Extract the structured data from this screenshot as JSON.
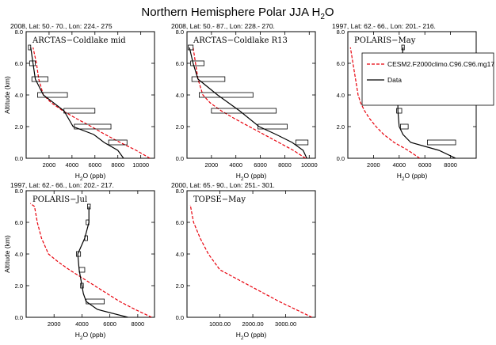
{
  "figure": {
    "title_main": "Northern Hemisphere Polar JJA H",
    "title_sub": "2",
    "title_tail": "O"
  },
  "colors": {
    "model": "#e8000b",
    "data": "#000000",
    "frame": "#000000"
  },
  "legend": {
    "model_label": "CESM2.F2000climo.C96.C96.mg17",
    "data_label": "Data"
  },
  "chart_data": [
    {
      "type": "line",
      "header": "2008, Lat:  50.- 70., Lon: 224.- 275",
      "label": "ARCTAS−Coldlake mid",
      "xlabel_main": "H",
      "xlabel_sub": "2",
      "xlabel_tail": "O (ppb)",
      "ylabel": "Altitude (km)",
      "xlim": [
        0,
        11200
      ],
      "ylim": [
        0,
        8
      ],
      "xticks": [
        2000,
        4000,
        6000,
        8000,
        10000
      ],
      "xtick_labels": [
        "2000",
        "4000",
        "6000",
        "8000",
        "10000"
      ],
      "yticks": [
        0,
        2,
        4,
        6,
        8
      ],
      "ytick_labels": [
        "0.0",
        "2.0",
        "4.0",
        "6.0",
        "8.0"
      ],
      "show_ylabel": true,
      "series": [
        {
          "role": "model",
          "x": [
            10800,
            9600,
            8200,
            6900,
            5700,
            4400,
            3200,
            2200,
            1500,
            1100,
            900,
            600
          ],
          "y": [
            0,
            0.5,
            1.0,
            1.5,
            2.0,
            2.5,
            3.0,
            3.5,
            4.0,
            5.0,
            6.0,
            7.0
          ]
        },
        {
          "role": "data",
          "x": [
            8500,
            8000,
            6800,
            5900,
            4100,
            3300,
            1500,
            800,
            600,
            400
          ],
          "y": [
            0,
            0.5,
            1.0,
            1.5,
            2.0,
            3.0,
            4.0,
            5.0,
            6.0,
            7.0
          ],
          "boxes": [
            [
              7200,
              8800,
              1.0
            ],
            [
              4200,
              7400,
              2.0
            ],
            [
              3300,
              6000,
              3.0
            ],
            [
              1000,
              3600,
              4.0
            ],
            [
              500,
              1900,
              5.0
            ],
            [
              300,
              800,
              6.0
            ],
            [
              200,
              400,
              7.0
            ]
          ]
        }
      ]
    },
    {
      "type": "line",
      "header": "2008, Lat:  50.- 87., Lon: 228.- 270.",
      "label": "ARCTAS−Coldlake R13",
      "xlabel_main": "H",
      "xlabel_sub": "2",
      "xlabel_tail": "O (ppb)",
      "ylabel": "",
      "xlim": [
        0,
        10500
      ],
      "ylim": [
        0,
        8
      ],
      "xticks": [
        2000,
        4000,
        6000,
        8000,
        10000
      ],
      "xtick_labels": [
        "2000",
        "4000",
        "6000",
        "8000",
        "10000"
      ],
      "yticks": [
        0,
        2,
        4,
        6,
        8
      ],
      "ytick_labels": [
        "0.0",
        "2.0",
        "4.0",
        "6.0",
        "8.0"
      ],
      "show_ylabel": false,
      "series": [
        {
          "role": "model",
          "x": [
            9700,
            8700,
            7500,
            6300,
            5100,
            3900,
            2800,
            1900,
            1300,
            900,
            700,
            500
          ],
          "y": [
            0,
            0.5,
            1.0,
            1.5,
            2.0,
            2.5,
            3.0,
            3.5,
            4.0,
            5.0,
            6.0,
            7.0
          ]
        },
        {
          "role": "data",
          "x": [
            9800,
            9500,
            8600,
            7300,
            5900,
            4300,
            2500,
            900,
            500,
            200
          ],
          "y": [
            0,
            0.5,
            1.0,
            1.5,
            2.0,
            3.0,
            4.0,
            5.0,
            6.0,
            7.0
          ],
          "boxes": [
            [
              8900,
              9900,
              1.0
            ],
            [
              5800,
              8200,
              2.0
            ],
            [
              2000,
              7300,
              3.0
            ],
            [
              1000,
              5400,
              4.0
            ],
            [
              400,
              3100,
              5.0
            ],
            [
              300,
              1400,
              6.0
            ],
            [
              100,
              500,
              7.0
            ]
          ]
        }
      ]
    },
    {
      "type": "line",
      "header": "1997, Lat:  62.- 66., Lon: 201.- 216.",
      "label": "POLARIS−May",
      "xlabel_main": "H",
      "xlabel_sub": "2",
      "xlabel_tail": "O (ppb)",
      "ylabel": "",
      "xlim": [
        0,
        10000
      ],
      "ylim": [
        0,
        8
      ],
      "xticks": [
        2000,
        4000,
        6000,
        8000
      ],
      "xtick_labels": [
        "2000",
        "4000",
        "6000",
        "8000"
      ],
      "yticks": [
        0,
        2,
        4,
        6,
        8
      ],
      "ytick_labels": [
        "0.0",
        "2.0",
        "4.0",
        "6.0",
        "8.0"
      ],
      "show_ylabel": false,
      "has_legend": true,
      "series": [
        {
          "role": "model",
          "x": [
            5600,
            4700,
            3600,
            2800,
            2200,
            1700,
            1300,
            1000,
            800,
            600,
            400,
            200
          ],
          "y": [
            0,
            0.5,
            1.0,
            1.5,
            2.0,
            2.5,
            3.0,
            3.5,
            4.0,
            5.0,
            6.0,
            7.0
          ]
        },
        {
          "role": "data",
          "x": [
            8400,
            7100,
            4900,
            4300,
            4000,
            3900,
            3900,
            4100,
            4200,
            4300
          ],
          "y": [
            0,
            0.5,
            1.0,
            1.5,
            2.0,
            3.0,
            4.0,
            5.0,
            6.0,
            7.0
          ],
          "boxes": [
            [
              6200,
              8400,
              1.0
            ],
            [
              4100,
              4700,
              2.0
            ],
            [
              3800,
              4200,
              3.0
            ],
            [
              3900,
              4100,
              4.0
            ],
            [
              4000,
              4300,
              5.0
            ],
            [
              4200,
              4300,
              6.0
            ],
            [
              4200,
              4400,
              7.0
            ]
          ]
        }
      ]
    },
    {
      "type": "line",
      "header": "1997, Lat:  62.- 66., Lon: 202.- 217.",
      "label": "POLARIS−Jul",
      "xlabel_main": "H",
      "xlabel_sub": "2",
      "xlabel_tail": "O (ppb)",
      "ylabel": "Altitude (km)",
      "xlim": [
        0,
        9200
      ],
      "ylim": [
        0,
        8
      ],
      "xticks": [
        2000,
        4000,
        6000,
        8000
      ],
      "xtick_labels": [
        "2000",
        "4000",
        "6000",
        "8000"
      ],
      "yticks": [
        0,
        2,
        4,
        6,
        8
      ],
      "ytick_labels": [
        "0.0",
        "2.0",
        "4.0",
        "6.0",
        "8.0"
      ],
      "show_ylabel": true,
      "series": [
        {
          "role": "model",
          "x": [
            9000,
            7800,
            6700,
            5800,
            4900,
            4000,
            3100,
            2300,
            1600,
            1100,
            800,
            600,
            300
          ],
          "y": [
            0,
            0.5,
            1.0,
            1.5,
            2.0,
            2.5,
            3.0,
            3.5,
            4.0,
            5.0,
            6.0,
            7.0,
            7.2
          ]
        },
        {
          "role": "data",
          "x": [
            7300,
            5100,
            4300,
            4100,
            4000,
            3900,
            3800,
            3700,
            4200,
            4500,
            4500
          ],
          "y": [
            0,
            0.5,
            1.0,
            1.5,
            2.0,
            2.5,
            3.0,
            4.0,
            5.0,
            6.0,
            7.0
          ],
          "boxes": [
            [
              4300,
              5600,
              1.0
            ],
            [
              3900,
              4100,
              2.0
            ],
            [
              3800,
              4200,
              3.0
            ],
            [
              3600,
              3900,
              4.0
            ],
            [
              4200,
              4400,
              5.0
            ],
            [
              4300,
              4500,
              6.0
            ],
            [
              4400,
              4600,
              7.0
            ]
          ]
        }
      ]
    },
    {
      "type": "line",
      "header": "2000, Lat:  65.- 90., Lon: 251.- 301.",
      "label": "TOPSE−May",
      "xlabel_main": "H",
      "xlabel_sub": "2",
      "xlabel_tail": "O (ppb)",
      "ylabel": "",
      "xlim": [
        0,
        3900
      ],
      "ylim": [
        0,
        8
      ],
      "xticks": [
        1000,
        2000,
        3000
      ],
      "xtick_labels": [
        "1000.00",
        "2000.00",
        "3000.00"
      ],
      "yticks": [
        0,
        2,
        4,
        6,
        8
      ],
      "ytick_labels": [
        "0.0",
        "2.0",
        "4.0",
        "6.0",
        "8.0"
      ],
      "show_ylabel": false,
      "series": [
        {
          "role": "model",
          "x": [
            3800,
            3300,
            2800,
            2350,
            1900,
            1450,
            1000,
            650,
            400,
            200,
            100
          ],
          "y": [
            0,
            0.5,
            1.0,
            1.5,
            2.0,
            2.5,
            3.0,
            4.0,
            5.0,
            6.0,
            7.1
          ]
        }
      ]
    }
  ]
}
